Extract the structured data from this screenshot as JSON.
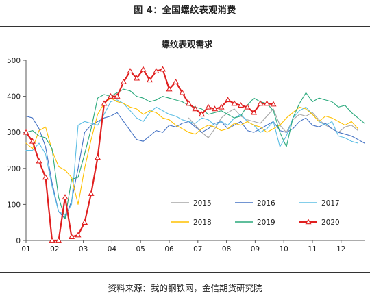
{
  "figure_title": "图 4：全国螺纹表观消费",
  "source_note": "资料来源：我的钢铁网，金信期货研究院",
  "chart_data": {
    "type": "line",
    "title": "螺纹表观需求",
    "xlabel": "",
    "ylabel": "",
    "x_unit": "week_of_year",
    "x_range": [
      1,
      53
    ],
    "ylim": [
      0,
      500
    ],
    "y_ticks": [
      0,
      100,
      200,
      300,
      400,
      500
    ],
    "x_ticks": [
      {
        "label": "01",
        "week": 1
      },
      {
        "label": "02",
        "week": 5.4
      },
      {
        "label": "03",
        "week": 9.8
      },
      {
        "label": "04",
        "week": 14.2
      },
      {
        "label": "05",
        "week": 18.6
      },
      {
        "label": "06",
        "week": 23
      },
      {
        "label": "07",
        "week": 27.4
      },
      {
        "label": "08",
        "week": 31.8
      },
      {
        "label": "09",
        "week": 36.2
      },
      {
        "label": "10",
        "week": 40.6
      },
      {
        "label": "11",
        "week": 45
      },
      {
        "label": "12",
        "week": 49.4
      }
    ],
    "grid": false,
    "legend_position": "inside-bottom",
    "series": [
      {
        "name": "2015",
        "color": "#a6a6a6",
        "marker": "none",
        "x": [
          26,
          27,
          28,
          29,
          30,
          31,
          32,
          33,
          34,
          35,
          36,
          37,
          38,
          39,
          40,
          41,
          42,
          43,
          44,
          45,
          46,
          47,
          48,
          49,
          50,
          51,
          52
        ],
        "y": [
          340,
          320,
          300,
          285,
          310,
          340,
          355,
          365,
          345,
          335,
          330,
          325,
          345,
          365,
          320,
          300,
          335,
          350,
          345,
          355,
          335,
          320,
          310,
          300,
          315,
          320,
          305
        ]
      },
      {
        "name": "2016",
        "color": "#4472c4",
        "marker": "none",
        "x": [
          1,
          2,
          3,
          4,
          5,
          6,
          7,
          8,
          9,
          10,
          11,
          12,
          13,
          14,
          15,
          16,
          17,
          18,
          19,
          20,
          21,
          22,
          23,
          24,
          25,
          26,
          27,
          28,
          29,
          30,
          31,
          32,
          33,
          34,
          35,
          36,
          37,
          38,
          39,
          40,
          41,
          42,
          43,
          44,
          45,
          46,
          47,
          48,
          49,
          50,
          51,
          52,
          53
        ],
        "y": [
          345,
          340,
          310,
          260,
          160,
          80,
          60,
          110,
          200,
          300,
          320,
          330,
          340,
          345,
          355,
          330,
          305,
          280,
          275,
          290,
          305,
          300,
          320,
          315,
          325,
          330,
          315,
          300,
          310,
          325,
          330,
          310,
          320,
          330,
          305,
          300,
          310,
          320,
          330,
          305,
          300,
          310,
          330,
          340,
          320,
          315,
          325,
          310,
          300,
          295,
          290,
          280,
          270
        ]
      },
      {
        "name": "2017",
        "color": "#5bbde4",
        "marker": "none",
        "x": [
          1,
          2,
          3,
          4,
          5,
          6,
          7,
          8,
          9,
          10,
          11,
          12,
          13,
          14,
          15,
          16,
          17,
          18,
          19,
          20,
          21,
          22,
          23,
          24,
          25,
          26,
          27,
          28,
          29,
          30,
          31,
          32,
          33,
          34,
          35,
          36,
          37,
          38,
          39,
          40,
          41,
          42,
          43,
          44,
          45,
          46,
          47,
          48,
          49,
          50,
          51,
          52
        ],
        "y": [
          250,
          250,
          270,
          240,
          150,
          80,
          70,
          100,
          320,
          330,
          325,
          320,
          350,
          385,
          390,
          380,
          360,
          340,
          330,
          355,
          370,
          360,
          350,
          345,
          335,
          330,
          325,
          340,
          335,
          320,
          330,
          320,
          340,
          350,
          330,
          320,
          300,
          310,
          330,
          260,
          290,
          340,
          360,
          370,
          350,
          330,
          320,
          330,
          290,
          285,
          275,
          270
        ]
      },
      {
        "name": "2018",
        "color": "#ffc000",
        "marker": "none",
        "x": [
          1,
          2,
          3,
          4,
          5,
          6,
          7,
          8,
          9,
          10,
          11,
          12,
          13,
          14,
          15,
          16,
          17,
          18,
          19,
          20,
          21,
          22,
          23,
          24,
          25,
          26,
          27,
          28,
          29,
          30,
          31,
          32,
          33,
          34,
          35,
          36,
          37,
          38,
          39,
          40,
          41,
          42,
          43,
          44,
          45,
          46,
          47,
          48,
          49,
          50,
          51,
          52
        ],
        "y": [
          270,
          255,
          305,
          315,
          250,
          205,
          195,
          175,
          100,
          200,
          280,
          350,
          380,
          395,
          385,
          380,
          370,
          365,
          350,
          360,
          355,
          340,
          335,
          320,
          310,
          300,
          295,
          310,
          320,
          315,
          305,
          310,
          325,
          320,
          330,
          320,
          315,
          300,
          310,
          320,
          340,
          355,
          370,
          365,
          350,
          330,
          345,
          340,
          330,
          320,
          330,
          310
        ]
      },
      {
        "name": "2019",
        "color": "#2aa97c",
        "marker": "none",
        "x": [
          1,
          2,
          3,
          4,
          5,
          6,
          7,
          8,
          9,
          10,
          11,
          12,
          13,
          14,
          15,
          16,
          17,
          18,
          19,
          20,
          21,
          22,
          23,
          24,
          25,
          26,
          27,
          28,
          29,
          30,
          31,
          32,
          33,
          34,
          35,
          36,
          37,
          38,
          39,
          40,
          41,
          42,
          43,
          44,
          45,
          46,
          47,
          48,
          49,
          50,
          51,
          52,
          53
        ],
        "y": [
          300,
          305,
          290,
          285,
          255,
          120,
          60,
          170,
          175,
          240,
          310,
          395,
          405,
          400,
          410,
          420,
          415,
          400,
          395,
          385,
          390,
          400,
          395,
          390,
          385,
          375,
          370,
          365,
          350,
          355,
          360,
          350,
          340,
          345,
          375,
          395,
          385,
          380,
          360,
          300,
          260,
          340,
          380,
          410,
          385,
          395,
          390,
          385,
          370,
          375,
          355,
          340,
          325
        ]
      },
      {
        "name": "2020",
        "color": "#e02020",
        "marker": "triangle",
        "x": [
          1,
          2,
          3,
          4,
          5,
          6,
          7,
          8,
          9,
          10,
          11,
          12,
          13,
          14,
          15,
          16,
          17,
          18,
          19,
          20,
          21,
          22,
          23,
          24,
          25,
          26,
          27,
          28,
          29,
          30,
          31,
          32,
          33,
          34,
          35,
          36,
          37,
          38,
          39
        ],
        "y": [
          300,
          275,
          220,
          175,
          0,
          0,
          120,
          10,
          15,
          50,
          130,
          230,
          380,
          400,
          400,
          440,
          470,
          450,
          475,
          445,
          470,
          475,
          420,
          440,
          410,
          380,
          365,
          350,
          370,
          365,
          370,
          390,
          380,
          375,
          370,
          355,
          380,
          380,
          378
        ]
      }
    ]
  }
}
